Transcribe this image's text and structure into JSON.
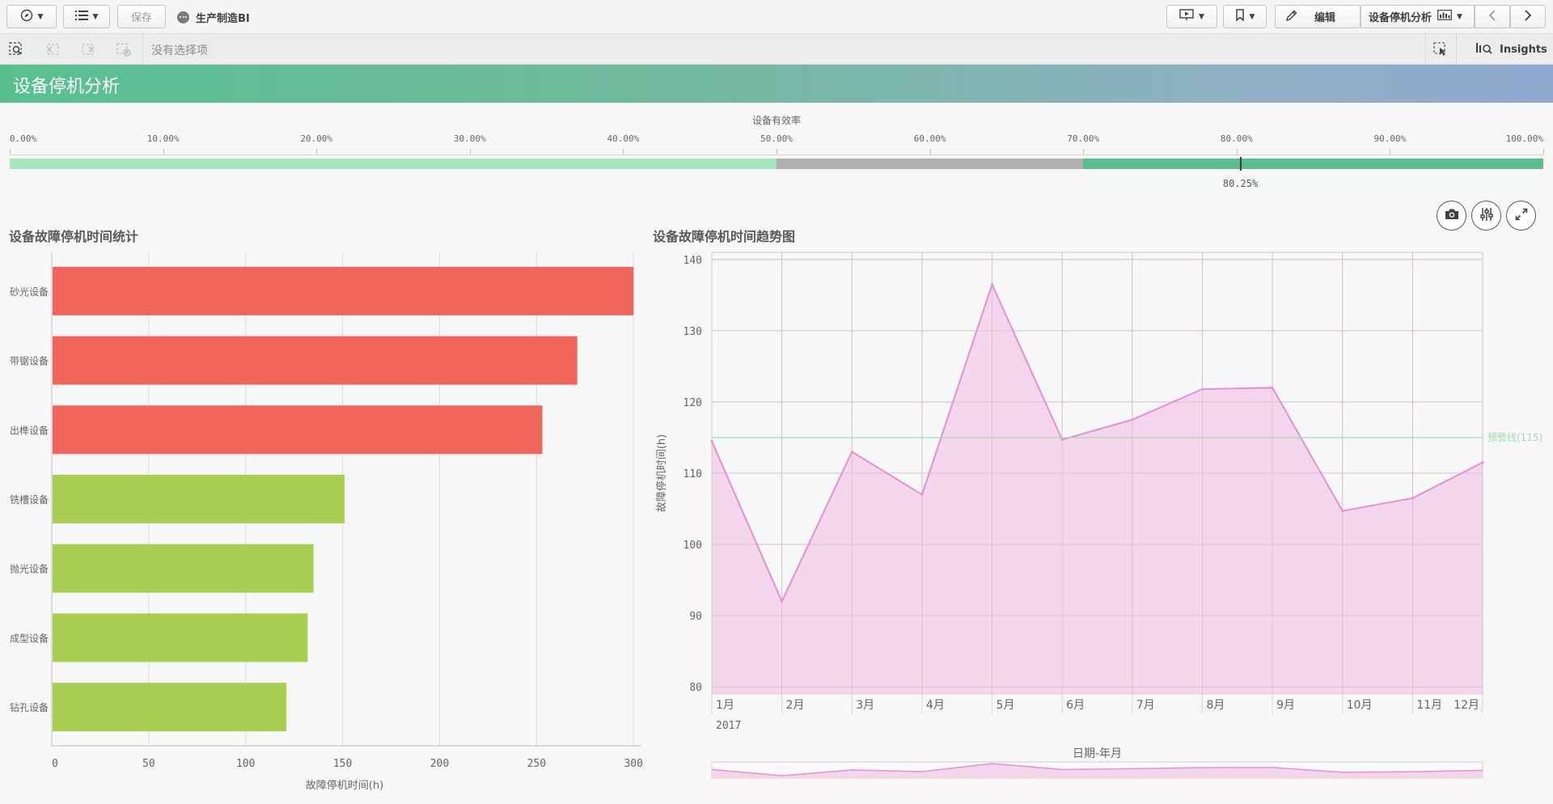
{
  "toolbar": {
    "save_label": "保存",
    "app_name": "生产制造BI",
    "edit_label": "编辑",
    "sheet_name": "设备停机分析"
  },
  "selection_bar": {
    "no_selection": "没有选择项",
    "insights_label": "Insights"
  },
  "sheet_title": "设备停机分析",
  "gauge": {
    "title": "设备有效率",
    "ticks": [
      "0.00%",
      "10.00%",
      "20.00%",
      "30.00%",
      "40.00%",
      "50.00%",
      "60.00%",
      "70.00%",
      "80.00%",
      "90.00%",
      "100.00%"
    ],
    "value": 0.8025,
    "value_label": "80.25%",
    "segments": [
      {
        "from": 0,
        "to": 0.5,
        "color": "#a8e6be"
      },
      {
        "from": 0.5,
        "to": 0.7,
        "color": "#b0b0b0"
      },
      {
        "from": 0.7,
        "to": 1.0,
        "color": "#5bbd8d"
      }
    ]
  },
  "panels": {
    "bar_title": "设备故障停机时间统计",
    "line_title": "设备故障停机时间趋势图"
  },
  "icons": {
    "snapshot": "camera-icon",
    "adjust": "sliders-icon",
    "expand": "expand-icon"
  },
  "chart_data": [
    {
      "type": "bar",
      "orientation": "horizontal",
      "categories": [
        "砂光设备",
        "带锯设备",
        "出榫设备",
        "铣槽设备",
        "抛光设备",
        "成型设备",
        "钻孔设备"
      ],
      "values": [
        300,
        271,
        253,
        151,
        135,
        132,
        121
      ],
      "colors": [
        "#f0665a",
        "#f0665a",
        "#f0665a",
        "#a8cf52",
        "#a8cf52",
        "#a8cf52",
        "#a8cf52"
      ],
      "xlabel": "故障停机时间(h)",
      "ticks": [
        0,
        50,
        100,
        150,
        200,
        250,
        300
      ],
      "xlim": [
        0,
        302
      ],
      "grid": true
    },
    {
      "type": "area",
      "categories": [
        "1月",
        "2月",
        "3月",
        "4月",
        "5月",
        "6月",
        "7月",
        "8月",
        "9月",
        "10月",
        "11月",
        "12月"
      ],
      "year_label": "2017",
      "values": [
        114.5,
        92,
        113,
        107,
        136.5,
        114.7,
        117.5,
        121.8,
        122,
        104.7,
        106.5,
        111.5
      ],
      "ylabel": "故障停机时间(h)",
      "xlabel": "日期-年月",
      "yticks": [
        80,
        90,
        100,
        110,
        120,
        130,
        140
      ],
      "ylim": [
        79,
        141
      ],
      "reference_line": {
        "value": 115,
        "label": "预警线(115)",
        "color": "#9fdcb3"
      },
      "line_color": "#e48fd4",
      "fill_color": "#f3d6ec",
      "grid": true
    }
  ]
}
